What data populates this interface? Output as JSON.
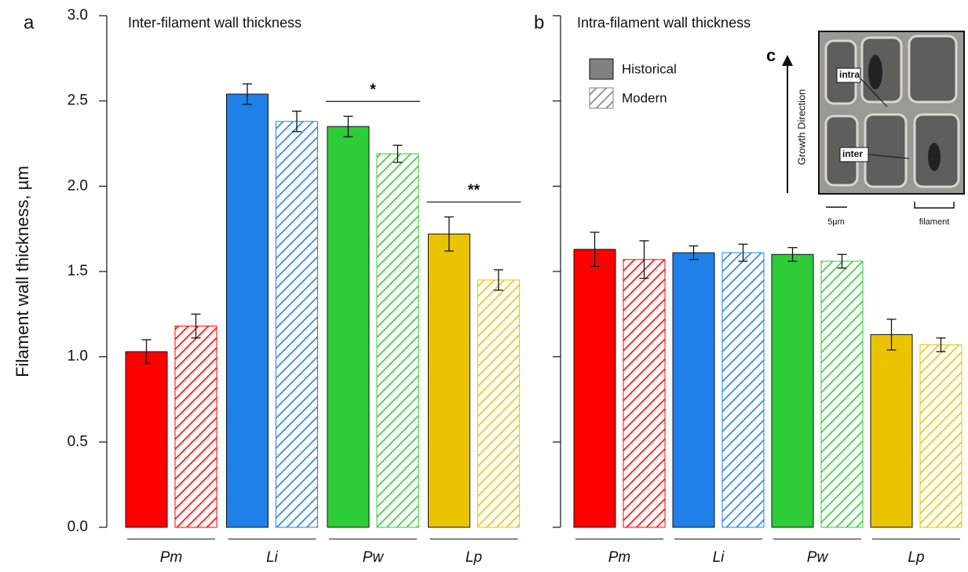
{
  "chart_data": [
    {
      "type": "bar",
      "panel_label": "a",
      "title": "Inter-filament wall thickness",
      "y_label": "Filament wall thickness, µm",
      "categories": [
        "Pm",
        "Li",
        "Pw",
        "Lp"
      ],
      "colors": [
        "#ff0000",
        "#1f80e8",
        "#2ecc36",
        "#eac400"
      ],
      "series": [
        {
          "name": "Historical",
          "fill": "solid",
          "values": [
            1.03,
            2.54,
            2.35,
            1.72
          ],
          "errors": [
            0.07,
            0.06,
            0.06,
            0.1
          ]
        },
        {
          "name": "Modern",
          "fill": "hatched",
          "values": [
            1.18,
            2.38,
            2.19,
            1.45
          ],
          "errors": [
            0.07,
            0.06,
            0.05,
            0.06
          ]
        }
      ],
      "annotations": [
        {
          "text": "*",
          "category": "Pw"
        },
        {
          "text": "**",
          "category": "Lp"
        }
      ],
      "ylim": [
        0,
        3
      ],
      "yticks": [
        {
          "value": 0,
          "label": "0.0"
        },
        0.5,
        {
          "value": 1,
          "label": "1.0"
        },
        1.5,
        {
          "value": 2,
          "label": "2.0"
        },
        2.5,
        {
          "value": 3,
          "label": "3.0"
        }
      ]
    },
    {
      "type": "bar",
      "panel_label": "b",
      "title": "Intra-filament wall thickness",
      "categories": [
        "Pm",
        "Li",
        "Pw",
        "Lp"
      ],
      "colors": [
        "#ff0000",
        "#1f80e8",
        "#2ecc36",
        "#eac400"
      ],
      "series": [
        {
          "name": "Historical",
          "fill": "solid",
          "values": [
            1.63,
            1.61,
            1.6,
            1.13
          ],
          "errors": [
            0.1,
            0.04,
            0.04,
            0.09
          ]
        },
        {
          "name": "Modern",
          "fill": "hatched",
          "values": [
            1.57,
            1.61,
            1.56,
            1.07
          ],
          "errors": [
            0.11,
            0.05,
            0.04,
            0.04
          ]
        }
      ],
      "legend_color": "#808080",
      "ylim": [
        0,
        3
      ],
      "yticks": [
        0,
        0.5,
        1,
        1.5,
        2,
        2.5,
        3
      ],
      "tick_labels": false,
      "inset": {
        "label": "c",
        "axis_label": "Growth Direction",
        "labels": [
          "intra",
          "inter"
        ],
        "scale_bar": "5µm",
        "bracket_label": "filament"
      }
    }
  ]
}
